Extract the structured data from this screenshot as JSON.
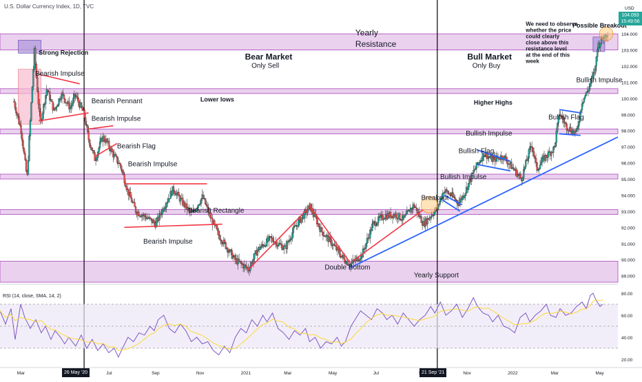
{
  "header": {
    "symbol_line": "U.S. Dollar Currency Index, 1D, TVC"
  },
  "chart_data": {
    "type": "candlestick",
    "instrument": "U.S. Dollar Currency Index",
    "timeframe": "1D",
    "price_axis": {
      "unit": "USD",
      "ticks": [
        "105.000",
        "104.000",
        "103.000",
        "102.000",
        "101.000",
        "100.000",
        "99.000",
        "98.000",
        "97.000",
        "96.000",
        "95.000",
        "94.000",
        "93.000",
        "92.000",
        "91.000",
        "90.000",
        "89.000"
      ],
      "range": [
        88.6,
        105.5
      ]
    },
    "last_price": {
      "value": "104.093",
      "countdown": "15:49:56"
    },
    "time_axis": {
      "ticks": [
        "Mar",
        "May",
        "Jul",
        "Sep",
        "Nov",
        "2021",
        "Mar",
        "May",
        "Jul",
        "Sep",
        "Nov",
        "2022",
        "Mar",
        "May"
      ],
      "highlighted": [
        "26 May '20",
        "21 Sep '21"
      ]
    },
    "price_path": [
      [
        "2020-02-20",
        99.8
      ],
      [
        "2020-03-01",
        98.0
      ],
      [
        "2020-03-09",
        95.0
      ],
      [
        "2020-03-12",
        97.5
      ],
      [
        "2020-03-19",
        102.9
      ],
      [
        "2020-03-27",
        98.4
      ],
      [
        "2020-04-05",
        100.6
      ],
      [
        "2020-04-15",
        99.2
      ],
      [
        "2020-04-25",
        100.3
      ],
      [
        "2020-05-07",
        99.4
      ],
      [
        "2020-05-14",
        100.2
      ],
      [
        "2020-05-26",
        99.0
      ],
      [
        "2020-06-01",
        97.5
      ],
      [
        "2020-06-10",
        96.2
      ],
      [
        "2020-06-20",
        97.6
      ],
      [
        "2020-06-26",
        97.3
      ],
      [
        "2020-07-05",
        96.5
      ],
      [
        "2020-07-15",
        95.8
      ],
      [
        "2020-07-25",
        94.2
      ],
      [
        "2020-08-05",
        93.0
      ],
      [
        "2020-08-20",
        92.6
      ],
      [
        "2020-09-01",
        92.2
      ],
      [
        "2020-09-10",
        93.1
      ],
      [
        "2020-09-25",
        94.4
      ],
      [
        "2020-10-05",
        93.7
      ],
      [
        "2020-10-20",
        92.8
      ],
      [
        "2020-11-04",
        93.9
      ],
      [
        "2020-11-15",
        92.6
      ],
      [
        "2020-11-25",
        91.6
      ],
      [
        "2020-12-05",
        90.9
      ],
      [
        "2020-12-18",
        90.0
      ],
      [
        "2021-01-06",
        89.4
      ],
      [
        "2021-01-18",
        90.6
      ],
      [
        "2021-02-05",
        91.3
      ],
      [
        "2021-02-25",
        90.7
      ],
      [
        "2021-03-10",
        92.0
      ],
      [
        "2021-03-31",
        93.3
      ],
      [
        "2021-04-15",
        91.8
      ],
      [
        "2021-04-30",
        91.0
      ],
      [
        "2021-05-15",
        90.1
      ],
      [
        "2021-05-25",
        89.7
      ],
      [
        "2021-06-10",
        90.3
      ],
      [
        "2021-06-25",
        92.2
      ],
      [
        "2021-07-10",
        92.7
      ],
      [
        "2021-07-25",
        92.8
      ],
      [
        "2021-08-06",
        92.5
      ],
      [
        "2021-08-20",
        93.4
      ],
      [
        "2021-09-02",
        92.2
      ],
      [
        "2021-09-21",
        93.2
      ],
      [
        "2021-09-30",
        94.3
      ],
      [
        "2021-10-10",
        94.0
      ],
      [
        "2021-10-20",
        93.5
      ],
      [
        "2021-10-29",
        94.2
      ],
      [
        "2021-11-10",
        95.5
      ],
      [
        "2021-11-24",
        96.6
      ],
      [
        "2021-12-05",
        96.2
      ],
      [
        "2021-12-20",
        96.4
      ],
      [
        "2021-12-31",
        95.8
      ],
      [
        "2022-01-14",
        95.0
      ],
      [
        "2022-01-28",
        97.2
      ],
      [
        "2022-02-04",
        95.6
      ],
      [
        "2022-02-14",
        96.3
      ],
      [
        "2022-02-28",
        96.9
      ],
      [
        "2022-03-07",
        99.1
      ],
      [
        "2022-03-16",
        98.3
      ],
      [
        "2022-03-30",
        97.8
      ],
      [
        "2022-04-07",
        99.8
      ],
      [
        "2022-04-15",
        100.5
      ],
      [
        "2022-04-25",
        101.8
      ],
      [
        "2022-04-28",
        103.2
      ],
      [
        "2022-05-06",
        103.8
      ],
      [
        "2022-05-10",
        104.0
      ],
      [
        "2022-05-12",
        104.09
      ]
    ],
    "horizontal_zones": [
      {
        "from": 103.0,
        "to": 104.0
      },
      {
        "from": 100.3,
        "to": 100.6
      },
      {
        "from": 97.8,
        "to": 98.1
      },
      {
        "from": 95.0,
        "to": 95.3
      },
      {
        "from": 92.8,
        "to": 93.1
      },
      {
        "from": 88.6,
        "to": 89.9
      }
    ],
    "annotations": [
      {
        "text": "Strong Rejection",
        "date": "2020-03-25",
        "price": 102.7,
        "style": "bold"
      },
      {
        "text": "Bearish Impulse",
        "date": "2020-03-20",
        "price": 101.4
      },
      {
        "text": "Bearish Pennant",
        "date": "2020-06-05",
        "price": 99.7
      },
      {
        "text": "Bearish Impulse",
        "date": "2020-06-05",
        "price": 98.6
      },
      {
        "text": "Bearish Flag",
        "date": "2020-07-10",
        "price": 96.9
      },
      {
        "text": "Bearish Impulse",
        "date": "2020-07-25",
        "price": 95.8
      },
      {
        "text": "Bearish Rectangle",
        "date": "2020-10-15",
        "price": 92.9
      },
      {
        "text": "Bearish Impulse",
        "date": "2020-08-15",
        "price": 91.0
      },
      {
        "text": "Bear Market",
        "date": "2021-01-01",
        "price": 102.4,
        "style": "bold-large"
      },
      {
        "text": "Only Sell",
        "date": "2021-01-10",
        "price": 101.9
      },
      {
        "text": "Lower lows",
        "date": "2020-11-01",
        "price": 99.8,
        "style": "bold"
      },
      {
        "text": "Yearly",
        "date": "2021-06-01",
        "price": 103.9,
        "style": "large"
      },
      {
        "text": "Resistance",
        "date": "2021-06-01",
        "price": 103.2,
        "style": "large"
      },
      {
        "text": "Double Bottom",
        "date": "2021-04-20",
        "price": 89.4
      },
      {
        "text": "Yearly Support",
        "date": "2021-08-20",
        "price": 88.9
      },
      {
        "text": "Breakout",
        "date": "2021-08-30",
        "price": 93.7
      },
      {
        "text": "Bull Market",
        "date": "2021-11-01",
        "price": 102.4,
        "style": "bold-large"
      },
      {
        "text": "Only Buy",
        "date": "2021-11-08",
        "price": 101.9
      },
      {
        "text": "Higher Highs",
        "date": "2021-11-10",
        "price": 99.6,
        "style": "bold"
      },
      {
        "text": "Bullish Impulse",
        "date": "2021-10-30",
        "price": 97.7
      },
      {
        "text": "Bullish Flag",
        "date": "2021-10-20",
        "price": 96.6
      },
      {
        "text": "Bullish Impulse",
        "date": "2021-09-25",
        "price": 95.0
      },
      {
        "text": "Bullish Flag",
        "date": "2022-02-20",
        "price": 98.7
      },
      {
        "text": "Bullish Impulse",
        "date": "2022-03-30",
        "price": 101.0
      },
      {
        "text": "Possible Breakout",
        "date": "2022-03-25",
        "price": 104.4,
        "style": "bold"
      },
      {
        "text": "We need to observe whether the price could clearly close above this resistance level at the end of this week",
        "date": "2022-01-20",
        "price": 104.5,
        "style": "note"
      }
    ],
    "rsi": {
      "label": "RSI (14, close, SMA, 14, 2)",
      "ticks": [
        "80.00",
        "60.00",
        "40.00",
        "20.00"
      ],
      "range": [
        15,
        85
      ],
      "band": [
        30,
        70
      ],
      "points": [
        [
          0,
          64
        ],
        [
          8,
          52
        ],
        [
          16,
          66
        ],
        [
          22,
          38
        ],
        [
          30,
          70
        ],
        [
          36,
          58
        ],
        [
          44,
          48
        ],
        [
          52,
          56
        ],
        [
          60,
          44
        ],
        [
          66,
          50
        ],
        [
          74,
          38
        ],
        [
          80,
          46
        ],
        [
          88,
          40
        ],
        [
          94,
          34
        ],
        [
          100,
          40
        ],
        [
          110,
          32
        ],
        [
          118,
          42
        ],
        [
          126,
          30
        ],
        [
          134,
          38
        ],
        [
          142,
          28
        ],
        [
          150,
          34
        ],
        [
          158,
          26
        ],
        [
          166,
          30
        ],
        [
          172,
          22
        ],
        [
          178,
          30
        ],
        [
          186,
          40
        ],
        [
          194,
          36
        ],
        [
          202,
          44
        ],
        [
          210,
          42
        ],
        [
          218,
          50
        ],
        [
          224,
          46
        ],
        [
          230,
          56
        ],
        [
          238,
          60
        ],
        [
          246,
          48
        ],
        [
          254,
          44
        ],
        [
          262,
          52
        ],
        [
          270,
          46
        ],
        [
          278,
          36
        ],
        [
          286,
          40
        ],
        [
          294,
          34
        ],
        [
          302,
          36
        ],
        [
          310,
          28
        ],
        [
          318,
          24
        ],
        [
          326,
          32
        ],
        [
          334,
          26
        ],
        [
          342,
          40
        ],
        [
          350,
          48
        ],
        [
          358,
          44
        ],
        [
          366,
          56
        ],
        [
          374,
          50
        ],
        [
          382,
          60
        ],
        [
          388,
          54
        ],
        [
          396,
          62
        ],
        [
          404,
          48
        ],
        [
          412,
          44
        ],
        [
          420,
          38
        ],
        [
          428,
          46
        ],
        [
          436,
          42
        ],
        [
          444,
          48
        ],
        [
          450,
          36
        ],
        [
          458,
          40
        ],
        [
          466,
          30
        ],
        [
          474,
          36
        ],
        [
          482,
          34
        ],
        [
          490,
          40
        ],
        [
          496,
          32
        ],
        [
          502,
          36
        ],
        [
          510,
          50
        ],
        [
          516,
          56
        ],
        [
          524,
          64
        ],
        [
          532,
          60
        ],
        [
          540,
          56
        ],
        [
          548,
          66
        ],
        [
          556,
          62
        ],
        [
          562,
          56
        ],
        [
          570,
          60
        ],
        [
          578,
          52
        ],
        [
          586,
          62
        ],
        [
          594,
          56
        ],
        [
          602,
          50
        ],
        [
          610,
          56
        ],
        [
          618,
          60
        ],
        [
          626,
          68
        ],
        [
          632,
          62
        ],
        [
          640,
          72
        ],
        [
          648,
          60
        ],
        [
          656,
          64
        ],
        [
          664,
          70
        ],
        [
          672,
          58
        ],
        [
          680,
          66
        ],
        [
          688,
          76
        ],
        [
          694,
          68
        ],
        [
          702,
          62
        ],
        [
          710,
          60
        ],
        [
          716,
          54
        ],
        [
          724,
          60
        ],
        [
          732,
          50
        ],
        [
          740,
          48
        ],
        [
          748,
          44
        ],
        [
          756,
          58
        ],
        [
          764,
          62
        ],
        [
          770,
          54
        ],
        [
          778,
          60
        ],
        [
          786,
          64
        ],
        [
          794,
          70
        ],
        [
          800,
          60
        ],
        [
          808,
          58
        ],
        [
          814,
          66
        ],
        [
          822,
          60
        ],
        [
          830,
          62
        ],
        [
          838,
          68
        ],
        [
          846,
          72
        ],
        [
          852,
          66
        ],
        [
          858,
          78
        ],
        [
          862,
          80
        ],
        [
          866,
          74
        ],
        [
          872,
          68
        ],
        [
          876,
          70
        ]
      ]
    },
    "colors": {
      "up": "#26a69a",
      "down": "#ef5350",
      "zone": "#e1bee7",
      "zone_border": "#ab47bc",
      "trendline": "#2962ff",
      "pattern_line": "#f23645",
      "rsi": "#7e57c2",
      "rsi_ma": "#fdd835"
    }
  }
}
